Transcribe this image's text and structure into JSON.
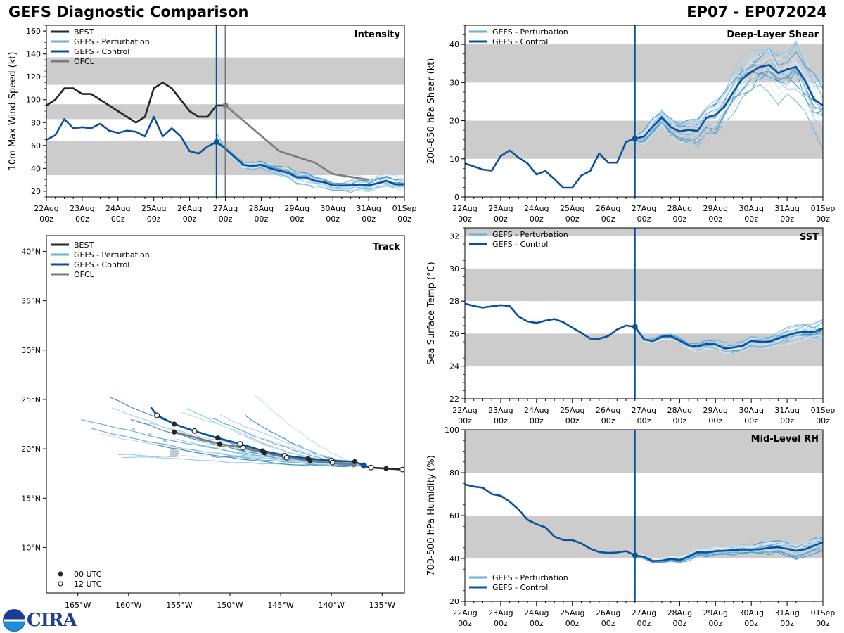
{
  "header": {
    "title": "GEFS Diagnostic Comparison",
    "storm_id": "EP07 - EP072024"
  },
  "colors": {
    "best": "#262626",
    "perturbation": "#6baed6",
    "control": "#08519c",
    "ofcl": "#7a7a7a",
    "band": "#cccccc"
  },
  "logo": {
    "agency": "NOAA",
    "text": "CIRA"
  },
  "time_axis": {
    "start": "22Aug 00z",
    "step_hours": 6,
    "tick_labels": [
      [
        "22Aug",
        "00z"
      ],
      [
        "23Aug",
        "00z"
      ],
      [
        "24Aug",
        "00z"
      ],
      [
        "25Aug",
        "00z"
      ],
      [
        "26Aug",
        "00z"
      ],
      [
        "27Aug",
        "00z"
      ],
      [
        "28Aug",
        "00z"
      ],
      [
        "29Aug",
        "00z"
      ],
      [
        "30Aug",
        "00z"
      ],
      [
        "31Aug",
        "00z"
      ],
      [
        "01Sep",
        "00z"
      ]
    ],
    "init_time_index": 19,
    "ofcl_time_index": 20
  },
  "chart_data": [
    {
      "id": "intensity",
      "type": "line",
      "title": "Intensity",
      "ylabel": "10m Max Wind Speed (kt)",
      "ylim": [
        15,
        165
      ],
      "yticks": [
        20,
        40,
        60,
        80,
        100,
        120,
        140,
        160
      ],
      "bands": [
        [
          34,
          64
        ],
        [
          83,
          96
        ],
        [
          113,
          137
        ]
      ],
      "legend": [
        "BEST",
        "GEFS - Perturbation",
        "GEFS - Control",
        "OFCL"
      ],
      "legend_position": "top-left",
      "series": [
        {
          "name": "BEST",
          "start_index": 0,
          "values": [
            95,
            100,
            110,
            110,
            105,
            105,
            100,
            95,
            90,
            85,
            80,
            85,
            110,
            115,
            110,
            100,
            90,
            85,
            85,
            95,
            95
          ]
        },
        {
          "name": "GEFS - Control",
          "start_index": 0,
          "values": [
            65,
            69,
            83,
            75,
            76,
            75,
            79,
            73,
            71,
            73,
            72,
            68,
            85,
            68,
            75,
            68,
            55,
            53,
            59,
            63,
            57,
            50,
            43,
            42,
            43,
            40,
            38,
            36,
            32,
            32,
            29,
            28,
            25,
            25,
            25,
            26,
            25,
            27,
            29,
            26,
            26
          ]
        },
        {
          "name": "OFCL",
          "points": [
            [
              20,
              95
            ],
            [
              26,
              55
            ],
            [
              30,
              45
            ],
            [
              32,
              35
            ],
            [
              36,
              30
            ]
          ]
        }
      ],
      "perturbation_spread": {
        "start_index": 19,
        "center_offset": [
          0,
          -5,
          -8,
          -9,
          -9,
          -8,
          -7,
          -6,
          -5,
          -4,
          -3,
          -3,
          -2,
          -2,
          -2,
          -2,
          -2,
          -3,
          -3,
          -3,
          -3,
          -3
        ],
        "members": 20
      }
    },
    {
      "id": "shear",
      "type": "line",
      "title": "Deep-Layer Shear",
      "ylabel": "200-850 hPa Shear (kt)",
      "ylim": [
        0,
        45
      ],
      "yticks": [
        0,
        10,
        20,
        30,
        40
      ],
      "bands": [
        [
          10,
          20
        ],
        [
          30,
          40
        ]
      ],
      "legend": [
        "GEFS - Perturbation",
        "GEFS - Control"
      ],
      "legend_position": "top-left",
      "series": [
        {
          "name": "GEFS - Control",
          "start_index": 0,
          "values": [
            8.8,
            8,
            7.2,
            6.9,
            10.7,
            12.2,
            10.3,
            8.8,
            5.9,
            6.8,
            4.7,
            2.4,
            2.4,
            5.6,
            6.8,
            11.4,
            9,
            9,
            14.4,
            15.3,
            15.8,
            18.5,
            20.8,
            18.3,
            17.2,
            17.6,
            17.3,
            20.8,
            21.5,
            23.7,
            27.6,
            31,
            32.8,
            34.1,
            34.6,
            32.5,
            33.5,
            34.1,
            30.5,
            25.6,
            24
          ]
        }
      ],
      "perturbation_spread": {
        "start_index": 19,
        "members": 20,
        "spread": 6
      }
    },
    {
      "id": "sst",
      "type": "line",
      "title": "SST",
      "ylabel": "Sea Surface Temp (°C)",
      "ylim": [
        22,
        32.5
      ],
      "yticks": [
        22,
        24,
        26,
        28,
        30,
        32
      ],
      "bands": [
        [
          24,
          26
        ],
        [
          28,
          30
        ],
        [
          32,
          33
        ]
      ],
      "legend": [
        "GEFS - Perturbation",
        "GEFS - Control"
      ],
      "legend_position": "top-left",
      "series": [
        {
          "name": "GEFS - Control",
          "start_index": 0,
          "values": [
            27.85,
            27.7,
            27.6,
            27.68,
            27.75,
            27.7,
            27.05,
            26.75,
            26.66,
            26.8,
            26.9,
            26.7,
            26.37,
            26.05,
            25.7,
            25.68,
            25.85,
            26.25,
            26.5,
            26.42,
            25.65,
            25.55,
            25.82,
            25.85,
            25.58,
            25.3,
            25.2,
            25.38,
            25.35,
            25.1,
            25.15,
            25.25,
            25.55,
            25.5,
            25.52,
            25.7,
            25.9,
            26.05,
            26.12,
            26.12,
            26.32
          ]
        }
      ],
      "perturbation_spread": {
        "start_index": 19,
        "members": 20,
        "spread": 0.35
      }
    },
    {
      "id": "rh",
      "type": "line",
      "title": "Mid-Level RH",
      "ylabel": "700-500 hPa Humidity (%)",
      "ylim": [
        20,
        100
      ],
      "yticks": [
        20,
        40,
        60,
        80,
        100
      ],
      "bands": [
        [
          40,
          60
        ],
        [
          80,
          100
        ]
      ],
      "legend": [
        "GEFS - Perturbation",
        "GEFS - Control"
      ],
      "legend_position": "bottom-left",
      "series": [
        {
          "name": "GEFS - Control",
          "start_index": 0,
          "values": [
            74.5,
            73.5,
            73,
            70,
            69.2,
            66.5,
            62.8,
            58,
            56,
            54.5,
            50.2,
            48.6,
            48.6,
            47,
            44.6,
            43,
            42.6,
            42.8,
            43.4,
            41.5,
            40.8,
            38.8,
            39,
            39.8,
            39.3,
            40.8,
            42.9,
            42.8,
            43.4,
            43.6,
            43.9,
            44.1,
            44.1,
            44.3,
            45,
            45.2,
            44.5,
            43.6,
            44.3,
            45.9,
            47.6,
            46.8
          ]
        }
      ],
      "perturbation_spread": {
        "start_index": 19,
        "members": 20,
        "spread": 3
      }
    },
    {
      "id": "track",
      "type": "line",
      "title": "Track",
      "xlim": [
        -168.1,
        -132.8
      ],
      "ylim": [
        5.4,
        41.6
      ],
      "xticks": [
        -165,
        -160,
        -155,
        -150,
        -145,
        -140,
        -135
      ],
      "xtick_labels": [
        "165°W",
        "160°W",
        "155°W",
        "150°W",
        "145°W",
        "140°W",
        "135°W"
      ],
      "yticks": [
        10,
        15,
        20,
        25,
        30,
        35,
        40
      ],
      "ytick_labels": [
        "10°N",
        "15°N",
        "20°N",
        "25°N",
        "30°N",
        "35°N",
        "40°N"
      ],
      "legend": [
        "BEST",
        "GEFS - Perturbation",
        "GEFS - Control",
        "OFCL"
      ],
      "marker_legend": [
        "00 UTC",
        "12 UTC"
      ],
      "series": [
        {
          "name": "BEST",
          "points": [
            [
              -136.8,
              18.3
            ],
            [
              -136.1,
              18.1
            ],
            [
              -134.6,
              18.0
            ],
            [
              -133.0,
              17.9
            ],
            [
              -132.8,
              17.9
            ]
          ]
        },
        {
          "name": "GEFS - Control",
          "points": [
            [
              -157.8,
              24.2
            ],
            [
              -157.2,
              23.4
            ],
            [
              -155.5,
              22.5
            ],
            [
              -153.5,
              21.8
            ],
            [
              -151.2,
              21.1
            ],
            [
              -149.0,
              20.5
            ],
            [
              -146.8,
              19.8
            ],
            [
              -144.6,
              19.3
            ],
            [
              -142.3,
              19.0
            ],
            [
              -140.0,
              18.8
            ],
            [
              -137.7,
              18.7
            ],
            [
              -136.8,
              18.3
            ]
          ]
        },
        {
          "name": "OFCL",
          "points": [
            [
              -155.5,
              21.7
            ],
            [
              -151.0,
              20.5
            ],
            [
              -148.7,
              20.1
            ],
            [
              -146.6,
              19.6
            ],
            [
              -144.4,
              19.1
            ],
            [
              -142.1,
              18.8
            ],
            [
              -139.9,
              18.6
            ],
            [
              -137.8,
              18.4
            ]
          ]
        }
      ],
      "markers_00utc": [
        [
          -155.5,
          22.5
        ],
        [
          -151.2,
          21.1
        ],
        [
          -146.8,
          19.8
        ],
        [
          -142.3,
          19.0
        ],
        [
          -137.7,
          18.7
        ],
        [
          -155.5,
          21.7
        ],
        [
          -151.0,
          20.5
        ],
        [
          -146.6,
          19.6
        ],
        [
          -142.1,
          18.8
        ],
        [
          -134.6,
          18.0
        ]
      ],
      "markers_12utc": [
        [
          -157.2,
          23.4
        ],
        [
          -153.5,
          21.8
        ],
        [
          -149.0,
          20.5
        ],
        [
          -144.6,
          19.3
        ],
        [
          -140.0,
          18.8
        ],
        [
          -148.7,
          20.1
        ],
        [
          -144.4,
          19.1
        ],
        [
          -139.9,
          18.6
        ],
        [
          -136.1,
          18.1
        ],
        [
          -133.0,
          17.9
        ]
      ],
      "perturbation_members": 20
    }
  ]
}
